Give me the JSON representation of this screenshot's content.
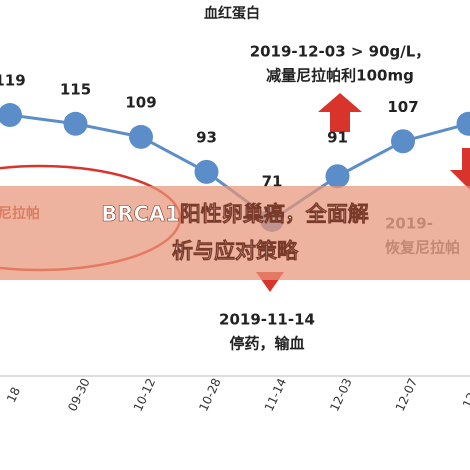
{
  "chart_data": {
    "type": "line",
    "title": "血红蛋白",
    "categories": [
      "18",
      "09-30",
      "10-12",
      "10-28",
      "11-14",
      "12-03",
      "12-07",
      "12-1"
    ],
    "series": [
      {
        "name": "血红蛋白",
        "color": "#5b8ec9",
        "values": [
          119,
          115,
          109,
          93,
          71,
          91,
          107,
          115
        ],
        "value_labels": [
          "119",
          "115",
          "109",
          "93",
          "71",
          "91",
          "107",
          null
        ]
      }
    ],
    "ylim": [
      60,
      130
    ],
    "annotations": [
      {
        "lines": [
          "2019-12-03 > 90g/L，",
          "减量尼拉帕利100mg"
        ]
      },
      {
        "lines": [
          "2019-11-14",
          "停药，输血"
        ]
      },
      {
        "lines": [
          "2019-",
          "恢复尼拉帕"
        ]
      },
      {
        "lines": [
          "尼拉帕"
        ]
      }
    ]
  },
  "banner": {
    "lines": [
      "BRCA1阳性卵巢癌，全面解",
      "析与应对策略"
    ]
  }
}
